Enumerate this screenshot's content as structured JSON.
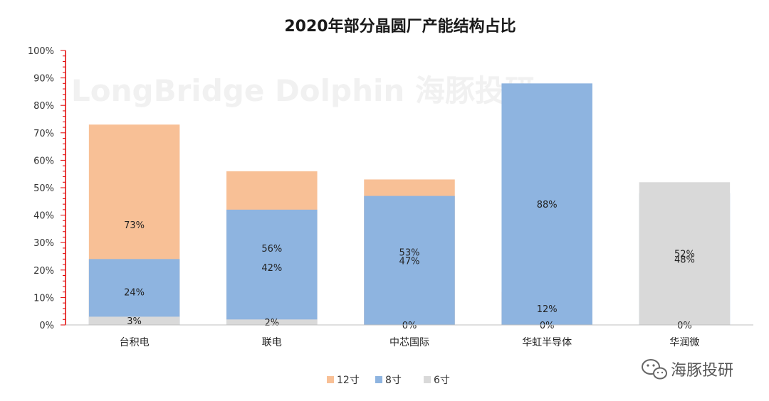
{
  "chart_data": {
    "type": "bar",
    "stacked": true,
    "title": "2020年部分晶圆厂产能结构占比",
    "categories": [
      "台积电",
      "联电",
      "中芯国际",
      "华虹半导体",
      "华润微"
    ],
    "series": [
      {
        "name": "12寸",
        "color": "#f8c096",
        "values": [
          73,
          56,
          53,
          12,
          0
        ]
      },
      {
        "name": "8寸",
        "color": "#8eb4e0",
        "values": [
          24,
          42,
          47,
          88,
          48
        ]
      },
      {
        "name": "6寸",
        "color": "#d9d9d9",
        "values": [
          3,
          2,
          0,
          0,
          52
        ]
      }
    ],
    "value_labels": [
      [
        "73%",
        "24%",
        "3%"
      ],
      [
        "56%",
        "42%",
        "2%"
      ],
      [
        "53%",
        "47%",
        "0%"
      ],
      [
        "12%",
        "88%",
        "0%"
      ],
      [
        "0%",
        "48%",
        "52%"
      ]
    ],
    "yticks": [
      "0%",
      "10%",
      "20%",
      "30%",
      "40%",
      "50%",
      "60%",
      "70%",
      "80%",
      "90%",
      "100%"
    ],
    "ylim": [
      0,
      100
    ],
    "grid": false,
    "legend": "bottom",
    "axis_color": "#e00000"
  },
  "brand": {
    "name": "海豚投研",
    "watermark": "LongBridge Dolphin 海豚投研",
    "icon": "wechat-icon"
  }
}
